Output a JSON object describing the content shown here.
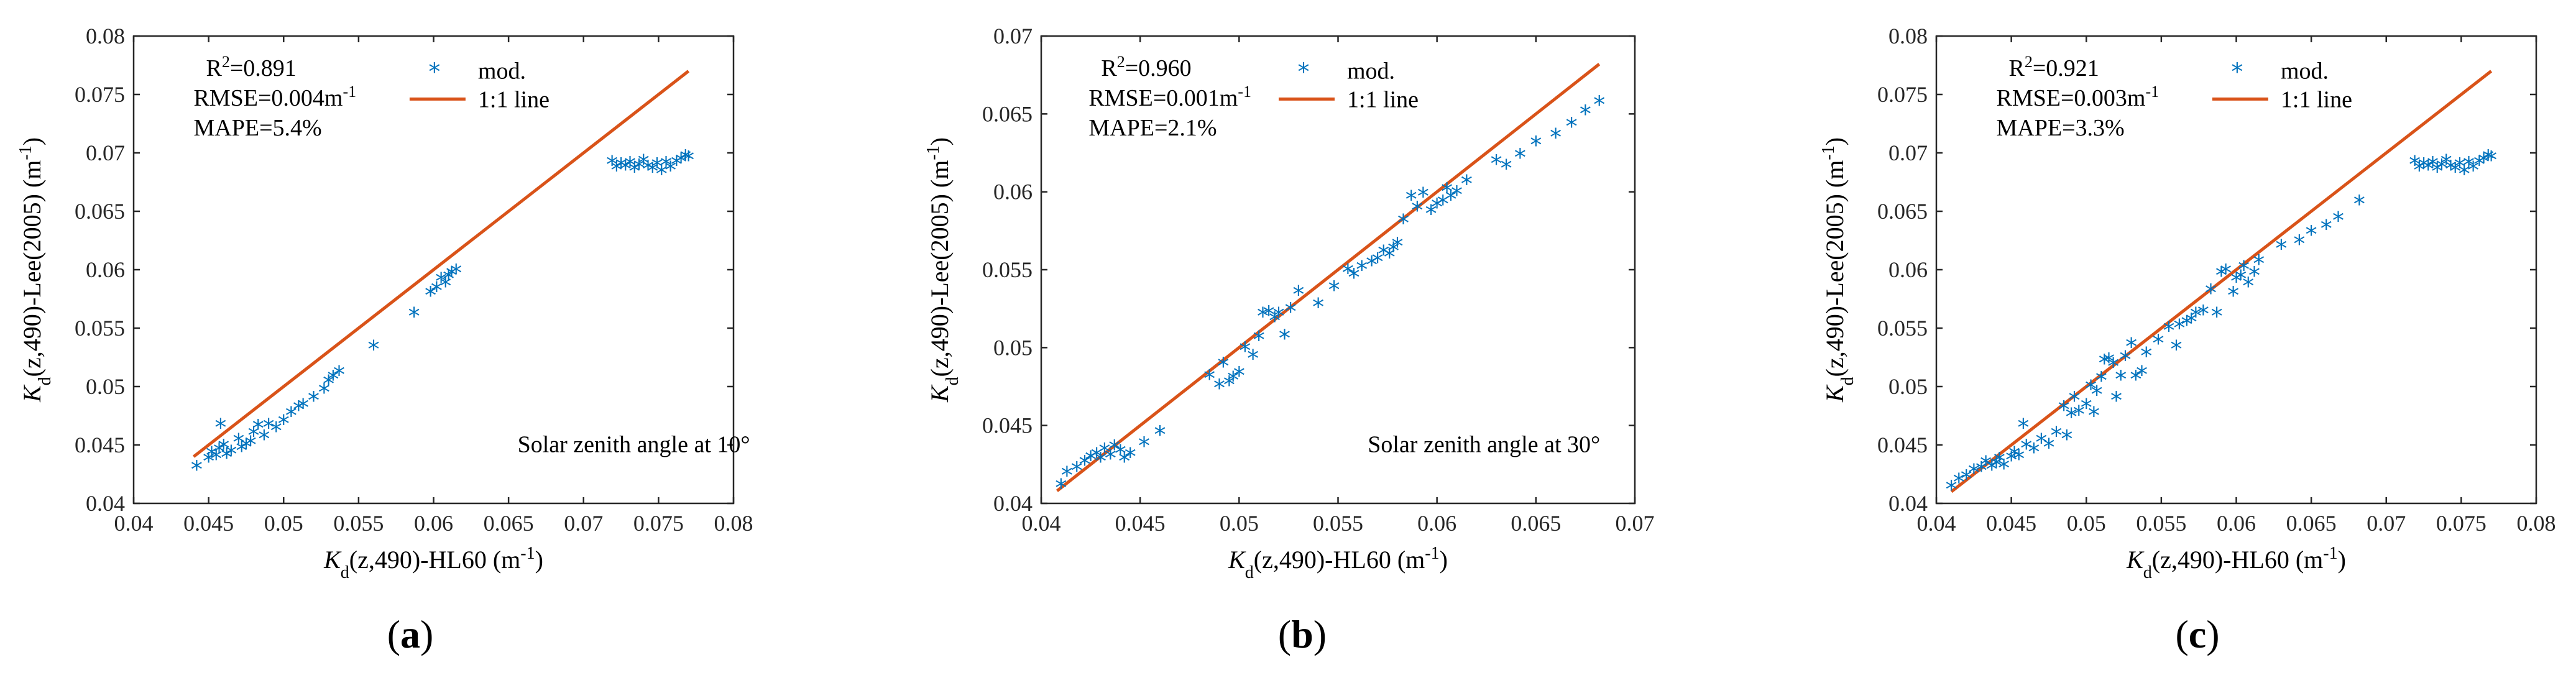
{
  "colors": {
    "points": "#0072BD",
    "line": "#D95319",
    "axis": "#262626"
  },
  "chart_data": [
    {
      "type": "scatter",
      "panel_label": "(a)",
      "xlabel_prefix": "K",
      "xlabel_sub": "d",
      "xlabel_rest": "(z,490)-HL60 (m",
      "xlabel_sup": "-1",
      "xlabel_end": ")",
      "ylabel_prefix": "K",
      "ylabel_sub": "d",
      "ylabel_rest": "(z,490)-Lee(2005) (m",
      "ylabel_sup": "-1",
      "ylabel_end": ")",
      "xlim": [
        0.04,
        0.08
      ],
      "ylim": [
        0.04,
        0.08
      ],
      "xticks": [
        "0.04",
        "0.045",
        "0.05",
        "0.055",
        "0.06",
        "0.065",
        "0.07",
        "0.075",
        "0.08"
      ],
      "yticks": [
        "0.04",
        "0.045",
        "0.05",
        "0.055",
        "0.06",
        "0.065",
        "0.07",
        "0.075",
        "0.08"
      ],
      "stats": {
        "r2_prefix": "R",
        "r2_sup": "2",
        "r2_value": "=0.891",
        "rmse_text": "RMSE=0.004m",
        "rmse_sup": "-1",
        "mape": "MAPE=5.4%"
      },
      "legend": {
        "points": "mod.",
        "line": "1:1 line"
      },
      "annotation": "Solar zenith angle at 10°",
      "line_points": [
        [
          0.044,
          0.044
        ],
        [
          0.077,
          0.077
        ]
      ],
      "series": [
        {
          "name": "mod.",
          "points": [
            [
              0.0442,
              0.0429
            ],
            [
              0.045,
              0.0436
            ],
            [
              0.0452,
              0.0441
            ],
            [
              0.0455,
              0.0438
            ],
            [
              0.0457,
              0.0444
            ],
            [
              0.0458,
              0.0465
            ],
            [
              0.046,
              0.0447
            ],
            [
              0.0462,
              0.0439
            ],
            [
              0.0465,
              0.0442
            ],
            [
              0.047,
              0.0452
            ],
            [
              0.0472,
              0.0445
            ],
            [
              0.0475,
              0.0448
            ],
            [
              0.0478,
              0.045
            ],
            [
              0.048,
              0.0458
            ],
            [
              0.0483,
              0.0464
            ],
            [
              0.0487,
              0.0455
            ],
            [
              0.049,
              0.0465
            ],
            [
              0.0495,
              0.0462
            ],
            [
              0.05,
              0.0468
            ],
            [
              0.0505,
              0.0475
            ],
            [
              0.051,
              0.048
            ],
            [
              0.0513,
              0.0482
            ],
            [
              0.052,
              0.0488
            ],
            [
              0.0527,
              0.0495
            ],
            [
              0.053,
              0.0502
            ],
            [
              0.0533,
              0.0506
            ],
            [
              0.0537,
              0.051
            ],
            [
              0.056,
              0.0532
            ],
            [
              0.0587,
              0.056
            ],
            [
              0.0598,
              0.0578
            ],
            [
              0.0602,
              0.0582
            ],
            [
              0.0605,
              0.059
            ],
            [
              0.0608,
              0.0586
            ],
            [
              0.061,
              0.0592
            ],
            [
              0.0612,
              0.0595
            ],
            [
              0.0615,
              0.0597
            ],
            [
              0.0719,
              0.069
            ],
            [
              0.0722,
              0.0685
            ],
            [
              0.0725,
              0.0688
            ],
            [
              0.0728,
              0.0686
            ],
            [
              0.0731,
              0.0689
            ],
            [
              0.0734,
              0.0684
            ],
            [
              0.0737,
              0.0687
            ],
            [
              0.074,
              0.0691
            ],
            [
              0.0743,
              0.0686
            ],
            [
              0.0746,
              0.0684
            ],
            [
              0.0749,
              0.0688
            ],
            [
              0.0752,
              0.0682
            ],
            [
              0.0755,
              0.0689
            ],
            [
              0.0758,
              0.0685
            ],
            [
              0.0762,
              0.069
            ],
            [
              0.0765,
              0.0692
            ],
            [
              0.0768,
              0.0695
            ],
            [
              0.077,
              0.0694
            ]
          ]
        }
      ]
    },
    {
      "type": "scatter",
      "panel_label": "(b)",
      "xlabel_prefix": "K",
      "xlabel_sub": "d",
      "xlabel_rest": "(z,490)-HL60 (m",
      "xlabel_sup": "-1",
      "xlabel_end": ")",
      "ylabel_prefix": "K",
      "ylabel_sub": "d",
      "ylabel_rest": "(z,490)-Lee(2005) (m",
      "ylabel_sup": "-1",
      "ylabel_end": ")",
      "xlim": [
        0.04,
        0.07
      ],
      "ylim": [
        0.04,
        0.07
      ],
      "xticks": [
        "0.04",
        "0.045",
        "0.05",
        "0.055",
        "0.06",
        "0.065",
        "0.07"
      ],
      "yticks": [
        "0.04",
        "0.045",
        "0.05",
        "0.055",
        "0.06",
        "0.065",
        "0.07"
      ],
      "stats": {
        "r2_prefix": "R",
        "r2_sup": "2",
        "r2_value": "=0.960",
        "rmse_text": "RMSE=0.001m",
        "rmse_sup": "-1",
        "mape": "MAPE=2.1%"
      },
      "legend": {
        "points": "mod.",
        "line": "1:1 line"
      },
      "annotation": "Solar zenith angle at 30°",
      "line_points": [
        [
          0.0408,
          0.0408
        ],
        [
          0.0682,
          0.0682
        ]
      ],
      "series": [
        {
          "name": "mod.",
          "points": [
            [
              0.041,
              0.041
            ],
            [
              0.0413,
              0.0418
            ],
            [
              0.0418,
              0.0421
            ],
            [
              0.0422,
              0.0425
            ],
            [
              0.0425,
              0.0428
            ],
            [
              0.0428,
              0.043
            ],
            [
              0.043,
              0.0427
            ],
            [
              0.0432,
              0.0433
            ],
            [
              0.0435,
              0.0429
            ],
            [
              0.0437,
              0.0435
            ],
            [
              0.044,
              0.0432
            ],
            [
              0.0442,
              0.0427
            ],
            [
              0.0445,
              0.043
            ],
            [
              0.0452,
              0.0437
            ],
            [
              0.046,
              0.0444
            ],
            [
              0.0485,
              0.048
            ],
            [
              0.049,
              0.0474
            ],
            [
              0.0492,
              0.0488
            ],
            [
              0.0495,
              0.0476
            ],
            [
              0.0497,
              0.0479
            ],
            [
              0.05,
              0.0482
            ],
            [
              0.0503,
              0.0498
            ],
            [
              0.0507,
              0.0493
            ],
            [
              0.051,
              0.0505
            ],
            [
              0.0512,
              0.052
            ],
            [
              0.0515,
              0.0521
            ],
            [
              0.0518,
              0.0517
            ],
            [
              0.052,
              0.052
            ],
            [
              0.0523,
              0.0506
            ],
            [
              0.0526,
              0.0523
            ],
            [
              0.053,
              0.0534
            ],
            [
              0.054,
              0.0526
            ],
            [
              0.0548,
              0.0537
            ],
            [
              0.0555,
              0.0548
            ],
            [
              0.0558,
              0.0545
            ],
            [
              0.0562,
              0.055
            ],
            [
              0.0567,
              0.0553
            ],
            [
              0.057,
              0.0555
            ],
            [
              0.0573,
              0.056
            ],
            [
              0.0576,
              0.0558
            ],
            [
              0.0578,
              0.0562
            ],
            [
              0.058,
              0.0565
            ],
            [
              0.0583,
              0.058
            ],
            [
              0.0587,
              0.0595
            ],
            [
              0.059,
              0.0588
            ],
            [
              0.0593,
              0.0597
            ],
            [
              0.0597,
              0.0586
            ],
            [
              0.06,
              0.059
            ],
            [
              0.0603,
              0.0592
            ],
            [
              0.0605,
              0.06
            ],
            [
              0.0607,
              0.0595
            ],
            [
              0.061,
              0.0598
            ],
            [
              0.0615,
              0.0605
            ],
            [
              0.063,
              0.0618
            ],
            [
              0.0635,
              0.0615
            ],
            [
              0.0642,
              0.0622
            ],
            [
              0.065,
              0.063
            ],
            [
              0.066,
              0.0635
            ],
            [
              0.0668,
              0.0642
            ],
            [
              0.0675,
              0.065
            ],
            [
              0.0682,
              0.0656
            ]
          ]
        }
      ]
    },
    {
      "type": "scatter",
      "panel_label": "(c)",
      "xlabel_prefix": "K",
      "xlabel_sub": "d",
      "xlabel_rest": "(z,490)-HL60 (m",
      "xlabel_sup": "-1",
      "xlabel_end": ")",
      "ylabel_prefix": "K",
      "ylabel_sub": "d",
      "ylabel_rest": "(z,490)-Lee(2005) (m",
      "ylabel_sup": "-1",
      "ylabel_end": ")",
      "xlim": [
        0.04,
        0.08
      ],
      "ylim": [
        0.04,
        0.08
      ],
      "xticks": [
        "0.04",
        "0.045",
        "0.05",
        "0.055",
        "0.06",
        "0.065",
        "0.07",
        "0.075",
        "0.08"
      ],
      "yticks": [
        "0.04",
        "0.045",
        "0.05",
        "0.055",
        "0.06",
        "0.065",
        "0.07",
        "0.075",
        "0.08"
      ],
      "stats": {
        "r2_prefix": "R",
        "r2_sup": "2",
        "r2_value": "=0.921",
        "rmse_text": "RMSE=0.003m",
        "rmse_sup": "-1",
        "mape": "MAPE=3.3%"
      },
      "legend": {
        "points": "mod.",
        "line": "1:1 line"
      },
      "annotation": "",
      "line_points": [
        [
          0.041,
          0.041
        ],
        [
          0.077,
          0.077
        ]
      ],
      "series": [
        {
          "name": "mod.",
          "points": [
            [
              0.041,
              0.0412
            ],
            [
              0.0415,
              0.0418
            ],
            [
              0.042,
              0.0421
            ],
            [
              0.0425,
              0.0426
            ],
            [
              0.043,
              0.0428
            ],
            [
              0.0433,
              0.0433
            ],
            [
              0.0437,
              0.0429
            ],
            [
              0.044,
              0.0432
            ],
            [
              0.0442,
              0.0436
            ],
            [
              0.0445,
              0.043
            ],
            [
              0.045,
              0.0437
            ],
            [
              0.0452,
              0.0441
            ],
            [
              0.0455,
              0.0438
            ],
            [
              0.0458,
              0.0465
            ],
            [
              0.046,
              0.0447
            ],
            [
              0.0465,
              0.0444
            ],
            [
              0.047,
              0.0452
            ],
            [
              0.0475,
              0.0448
            ],
            [
              0.048,
              0.0458
            ],
            [
              0.0485,
              0.048
            ],
            [
              0.0487,
              0.0455
            ],
            [
              0.049,
              0.0474
            ],
            [
              0.0492,
              0.0488
            ],
            [
              0.0495,
              0.0476
            ],
            [
              0.05,
              0.0482
            ],
            [
              0.0503,
              0.0498
            ],
            [
              0.0505,
              0.0475
            ],
            [
              0.0507,
              0.0493
            ],
            [
              0.051,
              0.0505
            ],
            [
              0.0512,
              0.052
            ],
            [
              0.0515,
              0.0521
            ],
            [
              0.0518,
              0.0517
            ],
            [
              0.052,
              0.0488
            ],
            [
              0.0523,
              0.0506
            ],
            [
              0.0526,
              0.0523
            ],
            [
              0.053,
              0.0534
            ],
            [
              0.0533,
              0.0506
            ],
            [
              0.0537,
              0.051
            ],
            [
              0.054,
              0.0526
            ],
            [
              0.0548,
              0.0537
            ],
            [
              0.0555,
              0.0548
            ],
            [
              0.056,
              0.0532
            ],
            [
              0.0562,
              0.055
            ],
            [
              0.0567,
              0.0553
            ],
            [
              0.057,
              0.0555
            ],
            [
              0.0573,
              0.056
            ],
            [
              0.0578,
              0.0562
            ],
            [
              0.0583,
              0.058
            ],
            [
              0.0587,
              0.056
            ],
            [
              0.059,
              0.0595
            ],
            [
              0.0593,
              0.0597
            ],
            [
              0.0598,
              0.0578
            ],
            [
              0.06,
              0.059
            ],
            [
              0.0603,
              0.0592
            ],
            [
              0.0605,
              0.06
            ],
            [
              0.0608,
              0.0586
            ],
            [
              0.0612,
              0.0595
            ],
            [
              0.0615,
              0.0605
            ],
            [
              0.063,
              0.0618
            ],
            [
              0.0642,
              0.0622
            ],
            [
              0.065,
              0.063
            ],
            [
              0.066,
              0.0635
            ],
            [
              0.0668,
              0.0642
            ],
            [
              0.0682,
              0.0656
            ],
            [
              0.0719,
              0.069
            ],
            [
              0.0722,
              0.0685
            ],
            [
              0.0725,
              0.0688
            ],
            [
              0.0728,
              0.0686
            ],
            [
              0.0731,
              0.0689
            ],
            [
              0.0734,
              0.0684
            ],
            [
              0.0737,
              0.0687
            ],
            [
              0.074,
              0.0691
            ],
            [
              0.0743,
              0.0686
            ],
            [
              0.0746,
              0.0684
            ],
            [
              0.0749,
              0.0688
            ],
            [
              0.0752,
              0.0682
            ],
            [
              0.0755,
              0.0689
            ],
            [
              0.0758,
              0.0685
            ],
            [
              0.0762,
              0.069
            ],
            [
              0.0765,
              0.0692
            ],
            [
              0.0768,
              0.0695
            ],
            [
              0.077,
              0.0694
            ]
          ]
        }
      ]
    }
  ]
}
